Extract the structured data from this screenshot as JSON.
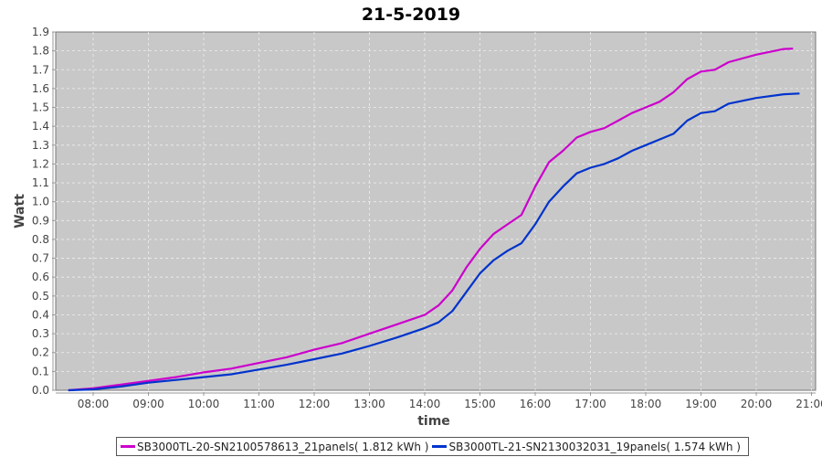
{
  "chart_data": {
    "type": "line",
    "title": "21-5-2019",
    "xlabel": "time",
    "ylabel": "Watt",
    "ylim": [
      0,
      1.9
    ],
    "xlim": [
      "07:20",
      "21:00"
    ],
    "grid": true,
    "legend_position": "bottom",
    "y_ticks": [
      "0.0",
      "0.1",
      "0.2",
      "0.3",
      "0.4",
      "0.5",
      "0.6",
      "0.7",
      "0.8",
      "0.9",
      "1.0",
      "1.1",
      "1.2",
      "1.3",
      "1.4",
      "1.5",
      "1.6",
      "1.7",
      "1.8",
      "1.9"
    ],
    "x_ticks": [
      "08:00",
      "09:00",
      "10:00",
      "11:00",
      "12:00",
      "13:00",
      "14:00",
      "15:00",
      "16:00",
      "17:00",
      "18:00",
      "19:00",
      "20:00",
      "21:00"
    ],
    "series": [
      {
        "name": "SB3000TL-20-SN2100578613_21panels( 1.812 kWh )",
        "color": "#cc00cc",
        "x": [
          "07:33",
          "08:00",
          "08:30",
          "09:00",
          "09:30",
          "10:00",
          "10:30",
          "11:00",
          "11:30",
          "12:00",
          "12:30",
          "13:00",
          "13:30",
          "14:00",
          "14:15",
          "14:30",
          "14:45",
          "15:00",
          "15:15",
          "15:30",
          "15:45",
          "16:00",
          "16:15",
          "16:30",
          "16:45",
          "17:00",
          "17:15",
          "17:30",
          "17:45",
          "18:00",
          "18:15",
          "18:30",
          "18:45",
          "19:00",
          "19:15",
          "19:30",
          "20:00",
          "20:30",
          "20:40"
        ],
        "values": [
          0,
          0.01,
          0.03,
          0.05,
          0.07,
          0.095,
          0.115,
          0.145,
          0.175,
          0.215,
          0.25,
          0.3,
          0.35,
          0.4,
          0.45,
          0.53,
          0.65,
          0.75,
          0.83,
          0.88,
          0.93,
          1.08,
          1.21,
          1.27,
          1.34,
          1.37,
          1.39,
          1.43,
          1.47,
          1.5,
          1.53,
          1.58,
          1.65,
          1.69,
          1.7,
          1.74,
          1.78,
          1.81,
          1.812
        ]
      },
      {
        "name": "SB3000TL-21-SN2130032031_19panels( 1.574 kWh )",
        "color": "#0033cc",
        "x": [
          "07:33",
          "08:00",
          "08:30",
          "09:00",
          "09:30",
          "10:00",
          "10:30",
          "11:00",
          "11:30",
          "12:00",
          "12:30",
          "13:00",
          "13:30",
          "14:00",
          "14:15",
          "14:30",
          "14:45",
          "15:00",
          "15:15",
          "15:30",
          "15:45",
          "16:00",
          "16:15",
          "16:30",
          "16:45",
          "17:00",
          "17:15",
          "17:30",
          "17:45",
          "18:00",
          "18:15",
          "18:30",
          "18:45",
          "19:00",
          "19:15",
          "19:30",
          "20:00",
          "20:30",
          "20:47"
        ],
        "values": [
          0,
          0.005,
          0.02,
          0.04,
          0.055,
          0.07,
          0.085,
          0.11,
          0.135,
          0.165,
          0.195,
          0.235,
          0.28,
          0.33,
          0.36,
          0.42,
          0.52,
          0.62,
          0.69,
          0.74,
          0.78,
          0.88,
          1.0,
          1.08,
          1.15,
          1.18,
          1.2,
          1.23,
          1.27,
          1.3,
          1.33,
          1.36,
          1.43,
          1.47,
          1.48,
          1.52,
          1.55,
          1.57,
          1.574
        ]
      }
    ]
  }
}
